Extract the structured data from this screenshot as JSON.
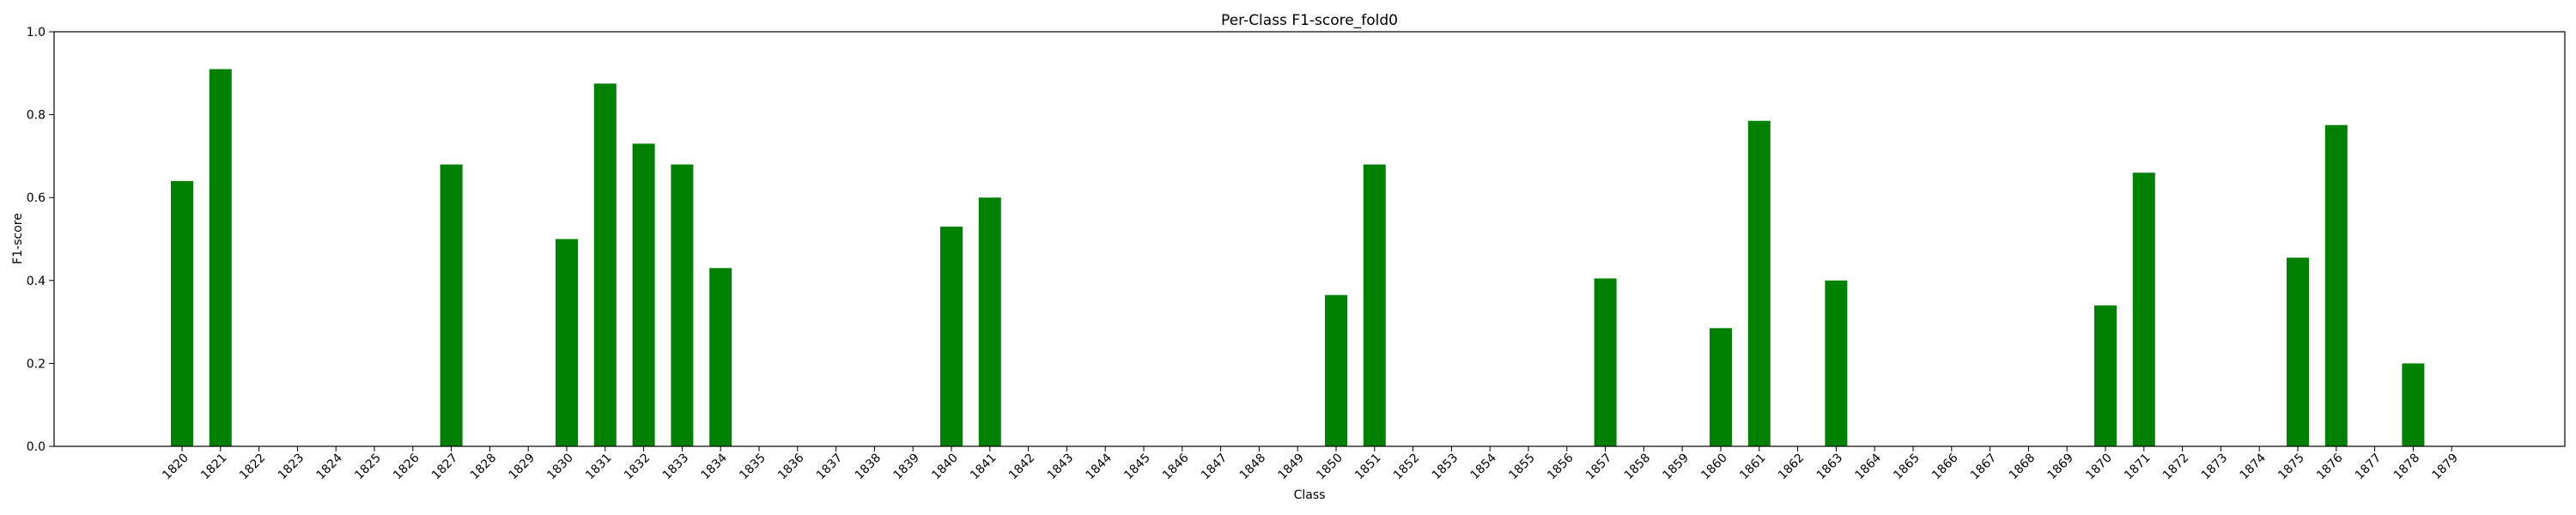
{
  "chart_data": {
    "type": "bar",
    "title": "Per-Class F1-score_fold0",
    "xlabel": "Class",
    "ylabel": "F1-score",
    "ylim": [
      0,
      1.0
    ],
    "yticks": [
      "0.0",
      "0.2",
      "0.4",
      "0.6",
      "0.8",
      "1.0"
    ],
    "grid": false,
    "bar_color": "#008000",
    "categories": [
      "1820",
      "1821",
      "1822",
      "1823",
      "1824",
      "1825",
      "1826",
      "1827",
      "1828",
      "1829",
      "1830",
      "1831",
      "1832",
      "1833",
      "1834",
      "1835",
      "1836",
      "1837",
      "1838",
      "1839",
      "1840",
      "1841",
      "1842",
      "1843",
      "1844",
      "1845",
      "1846",
      "1847",
      "1848",
      "1849",
      "1850",
      "1851",
      "1852",
      "1853",
      "1854",
      "1855",
      "1856",
      "1857",
      "1858",
      "1859",
      "1860",
      "1861",
      "1862",
      "1863",
      "1864",
      "1865",
      "1866",
      "1867",
      "1868",
      "1869",
      "1870",
      "1871",
      "1872",
      "1873",
      "1874",
      "1875",
      "1876",
      "1877",
      "1878",
      "1879"
    ],
    "values": [
      0.64,
      0.91,
      0,
      0,
      0,
      0,
      0,
      0.68,
      0,
      0,
      0.5,
      0.875,
      0.73,
      0.68,
      0.43,
      0,
      0,
      0,
      0,
      0,
      0.53,
      0.6,
      0,
      0,
      0,
      0,
      0,
      0,
      0,
      0,
      0.365,
      0.68,
      0,
      0,
      0,
      0,
      0,
      0.405,
      0,
      0,
      0.285,
      0.785,
      0,
      0.4,
      0,
      0,
      0,
      0,
      0,
      0,
      0.34,
      0.66,
      0,
      0,
      0,
      0.455,
      0.775,
      0,
      0.2,
      0
    ]
  }
}
